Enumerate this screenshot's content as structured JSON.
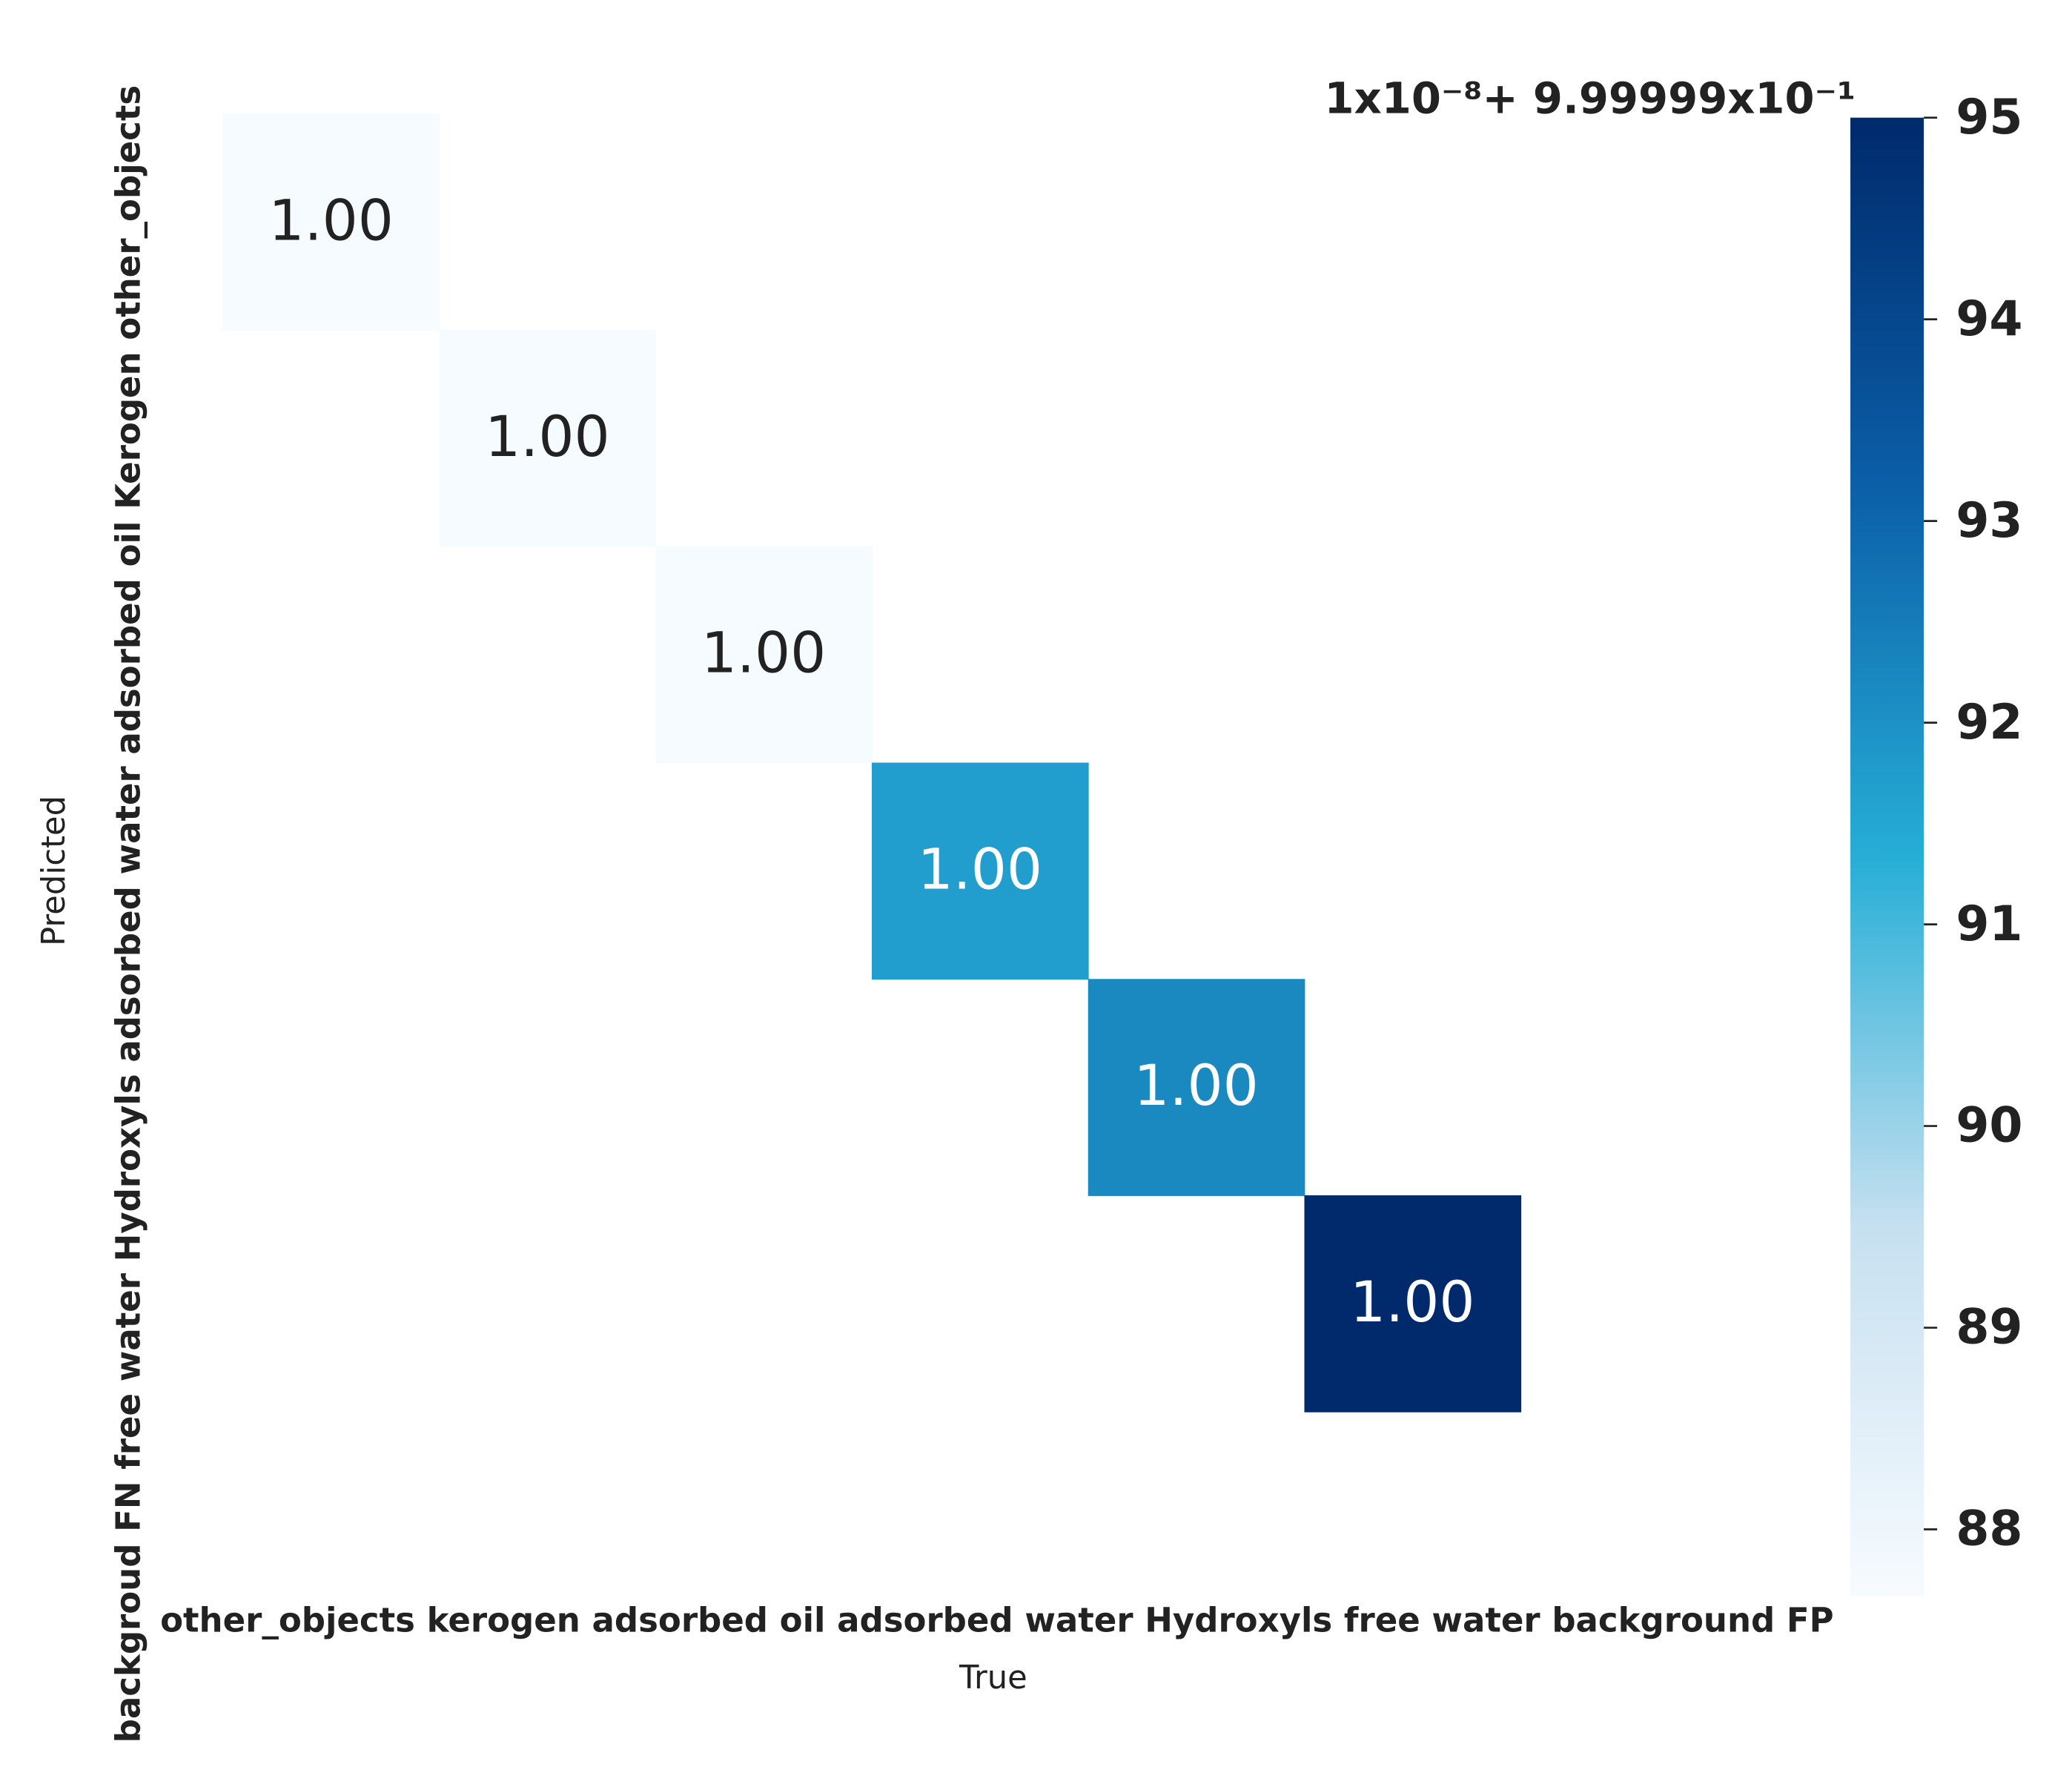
{
  "chart_data": {
    "type": "heatmap",
    "xlabel": "True",
    "ylabel": "Predicted",
    "x_categories": [
      "other_objects",
      "kerogen",
      "adsorbed oil",
      "adsorbed water",
      "Hydroxyls",
      "free water",
      "background FP"
    ],
    "y_categories": [
      "other_objects",
      "Kerogen",
      "adsorbed oil",
      "adsorbed water",
      "Hydroxyls",
      "free water",
      "backgroud FN"
    ],
    "z": [
      [
        87.7,
        null,
        null,
        null,
        null,
        null,
        null
      ],
      [
        null,
        87.7,
        null,
        null,
        null,
        null,
        null
      ],
      [
        null,
        null,
        87.7,
        null,
        null,
        null,
        null
      ],
      [
        null,
        null,
        null,
        91.7,
        null,
        null,
        null
      ],
      [
        null,
        null,
        null,
        null,
        92.2,
        null,
        null
      ],
      [
        null,
        null,
        null,
        null,
        null,
        95,
        null
      ],
      [
        null,
        null,
        null,
        null,
        null,
        null,
        null
      ]
    ],
    "value_labels": [
      [
        "1.00",
        null,
        null,
        null,
        null,
        null,
        null
      ],
      [
        null,
        "1.00",
        null,
        null,
        null,
        null,
        null
      ],
      [
        null,
        null,
        "1.00",
        null,
        null,
        null,
        null
      ],
      [
        null,
        null,
        null,
        "1.00",
        null,
        null,
        null
      ],
      [
        null,
        null,
        null,
        null,
        "1.00",
        null,
        null
      ],
      [
        null,
        null,
        null,
        null,
        null,
        "1.00",
        null
      ],
      [
        null,
        null,
        null,
        null,
        null,
        null,
        null
      ]
    ],
    "colorbar_offset": "1x10⁻⁸+ 9.99999x10⁻¹",
    "clim": [
      87.67,
      95
    ],
    "cticks": [
      88,
      89,
      90,
      91,
      92,
      93,
      94,
      95
    ],
    "colormap": [
      "#f7fbff",
      "#c6e0f0",
      "#26aed6",
      "#0b5fa8",
      "#002a6c"
    ]
  }
}
